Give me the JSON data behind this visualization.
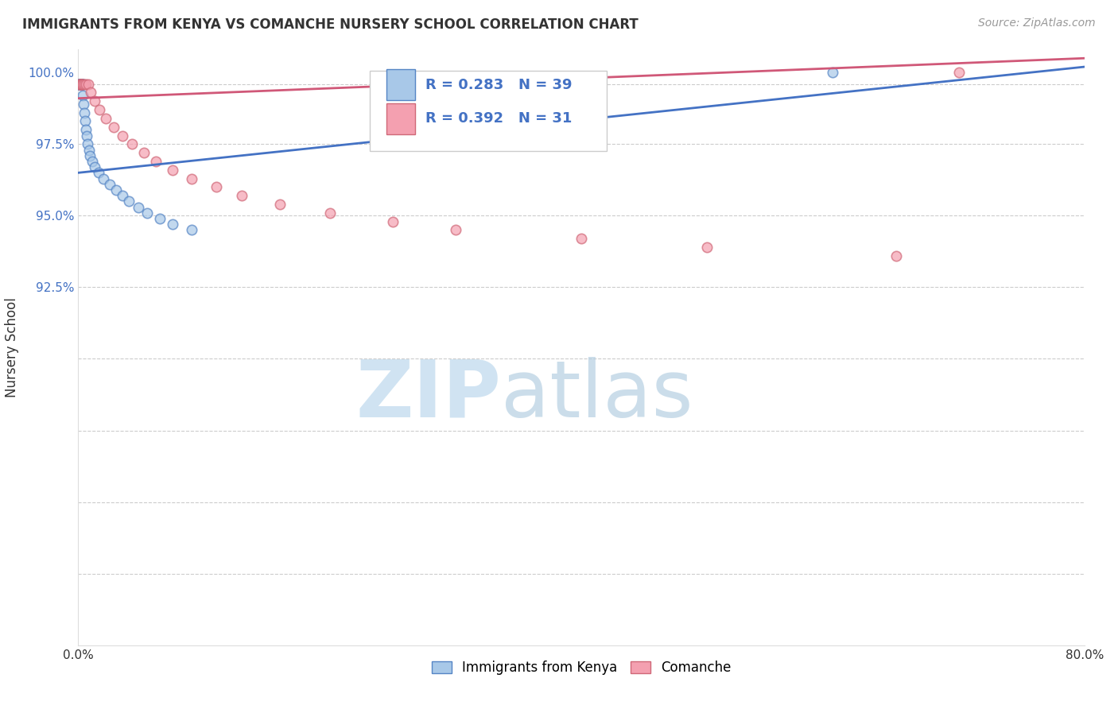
{
  "title": "IMMIGRANTS FROM KENYA VS COMANCHE NURSERY SCHOOL CORRELATION CHART",
  "source": "Source: ZipAtlas.com",
  "ylabel": "Nursery School",
  "legend_label1": "Immigrants from Kenya",
  "legend_label2": "Comanche",
  "r1": 0.283,
  "n1": 39,
  "r2": 0.392,
  "n2": 31,
  "color1": "#a8c8e8",
  "color2": "#f4a0b0",
  "edge_color1": "#5585c5",
  "edge_color2": "#d06878",
  "line_color1": "#4472c4",
  "line_color2": "#d05878",
  "xlim": [
    0.0,
    80.0
  ],
  "ylim": [
    80.0,
    100.8
  ],
  "blue_x": [
    0.05,
    0.07,
    0.09,
    0.11,
    0.13,
    0.15,
    0.17,
    0.19,
    0.21,
    0.23,
    0.25,
    0.27,
    0.29,
    0.31,
    0.33,
    0.35,
    0.38,
    0.42,
    0.46,
    0.52,
    0.58,
    0.65,
    0.75,
    0.85,
    0.95,
    1.1,
    1.3,
    1.6,
    2.0,
    2.5,
    3.0,
    3.5,
    4.0,
    4.8,
    5.5,
    6.5,
    7.5,
    9.0,
    60.0
  ],
  "blue_y": [
    99.6,
    99.6,
    99.6,
    99.6,
    99.6,
    99.6,
    99.6,
    99.6,
    99.6,
    99.6,
    99.6,
    99.6,
    99.6,
    99.6,
    99.6,
    99.6,
    99.2,
    98.9,
    98.6,
    98.3,
    98.0,
    97.8,
    97.5,
    97.3,
    97.1,
    96.9,
    96.7,
    96.5,
    96.3,
    96.1,
    95.9,
    95.7,
    95.5,
    95.3,
    95.1,
    94.9,
    94.7,
    94.5,
    100.0
  ],
  "pink_x": [
    0.08,
    0.12,
    0.16,
    0.2,
    0.24,
    0.28,
    0.35,
    0.45,
    0.6,
    0.8,
    1.0,
    1.3,
    1.7,
    2.2,
    2.8,
    3.5,
    4.3,
    5.2,
    6.2,
    7.5,
    9.0,
    11.0,
    13.0,
    16.0,
    20.0,
    25.0,
    30.0,
    40.0,
    50.0,
    65.0,
    70.0
  ],
  "pink_y": [
    99.6,
    99.6,
    99.6,
    99.6,
    99.6,
    99.6,
    99.6,
    99.6,
    99.6,
    99.6,
    99.3,
    99.0,
    98.7,
    98.4,
    98.1,
    97.8,
    97.5,
    97.2,
    96.9,
    96.6,
    96.3,
    96.0,
    95.7,
    95.4,
    95.1,
    94.8,
    94.5,
    94.2,
    93.9,
    93.6,
    100.0
  ],
  "blue_trend_x": [
    0.0,
    80.0
  ],
  "blue_trend_y": [
    96.5,
    100.2
  ],
  "pink_trend_x": [
    0.0,
    80.0
  ],
  "pink_trend_y": [
    99.1,
    100.5
  ],
  "dashed_line_y": 99.6,
  "watermark_zip_color": "#c8dff0",
  "watermark_atlas_color": "#b0cce0"
}
